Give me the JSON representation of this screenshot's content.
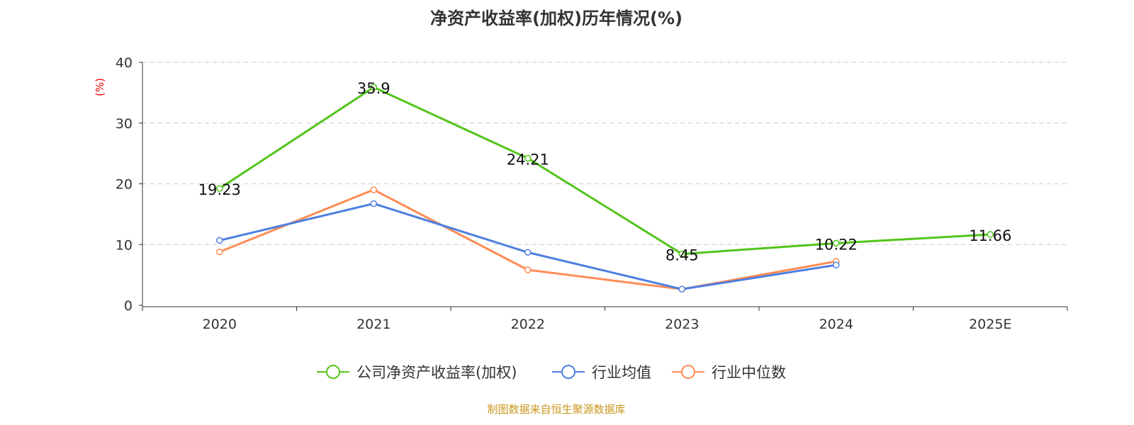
{
  "chart_data": {
    "type": "line",
    "title": "净资产收益率(加权)历年情况(%)",
    "ylabel": "(%)",
    "categories": [
      "2020",
      "2021",
      "2022",
      "2023",
      "2024",
      "2025E"
    ],
    "ylim": [
      0,
      40
    ],
    "yticks": [
      0,
      10,
      20,
      30,
      40
    ],
    "grid": true,
    "legend_position": "bottom",
    "series": [
      {
        "name": "公司净资产收益率(加权)",
        "color": "#52c41a",
        "values": [
          19.23,
          35.9,
          24.21,
          8.45,
          10.22,
          11.66
        ],
        "labels": [
          "19.23",
          "35.9",
          "24.21",
          "8.45",
          "10.22",
          "11.66"
        ]
      },
      {
        "name": "行业均值",
        "color": "#4e7fe0",
        "values": [
          10.68,
          16.74,
          8.71,
          2.65,
          6.63,
          null
        ]
      },
      {
        "name": "行业中位数",
        "color": "#ff8c55",
        "values": [
          8.79,
          19.02,
          5.83,
          2.65,
          7.23,
          null
        ]
      }
    ]
  },
  "source": "制图数据来自恒生聚源数据库"
}
